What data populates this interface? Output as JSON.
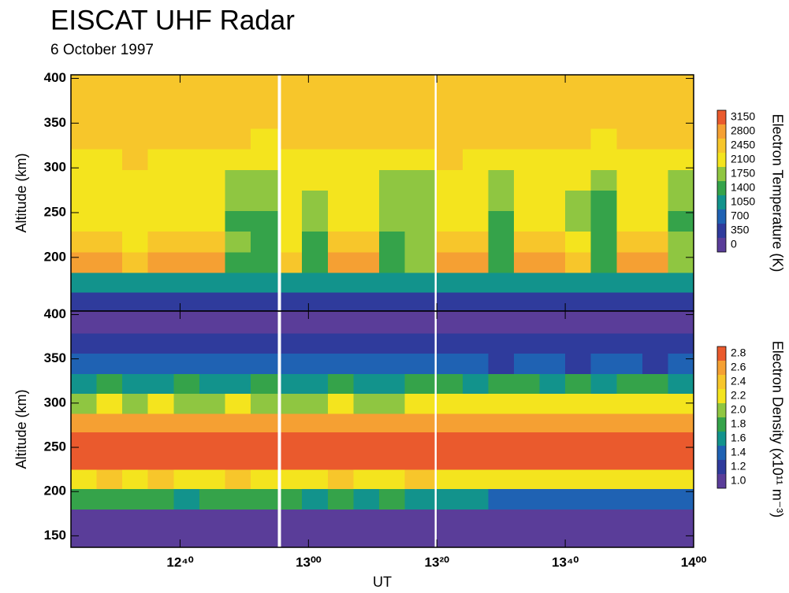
{
  "chart_data": [
    {
      "type": "heatmap",
      "title": "EISCAT UHF Radar",
      "subtitle": "6 October 1997",
      "ylabel": "Altitude (km)",
      "colorbar_label": "Electron Temperature (K)",
      "xlim": [
        743,
        840
      ],
      "ylim": [
        140,
        404
      ],
      "yticks": [
        200,
        250,
        300,
        350,
        400
      ],
      "x_edges": [
        743,
        747,
        751,
        755,
        759,
        763,
        767,
        771,
        775.2,
        775.7,
        779,
        783,
        787,
        791,
        795,
        799.6,
        800,
        804,
        808,
        812,
        816,
        820,
        824,
        828,
        832,
        836,
        840
      ],
      "y_edges": [
        140,
        161,
        183,
        206,
        229,
        252,
        275,
        298,
        321,
        344,
        367,
        390,
        404
      ],
      "levels": [
        0,
        350,
        700,
        1050,
        1400,
        1750,
        2100,
        2450,
        2800,
        3150
      ],
      "colors": [
        "#5a3d99",
        "#2f3b9c",
        "#1f62b3",
        "#12938c",
        "#35a34a",
        "#8fc641",
        "#f4e41e",
        "#f7c62b",
        "#f5a033",
        "#ea5a2d"
      ],
      "z": [
        [
          380,
          420,
          360,
          400,
          430,
          390,
          410,
          370,
          null,
          400,
          350,
          420,
          390,
          410,
          380,
          null,
          420,
          390,
          360,
          400,
          430,
          410,
          380,
          400,
          420,
          390
        ],
        [
          1120,
          1080,
          1150,
          1100,
          1060,
          1130,
          1090,
          1110,
          null,
          1140,
          1070,
          1120,
          1100,
          1080,
          1150,
          null,
          1130,
          1090,
          1110,
          1060,
          1120,
          1100,
          1140,
          1080,
          1110,
          1090
        ],
        [
          2900,
          2850,
          2500,
          2950,
          2880,
          2820,
          1700,
          1550,
          null,
          2450,
          1600,
          2880,
          2920,
          1650,
          1800,
          null,
          2950,
          2870,
          1650,
          2900,
          2860,
          2500,
          1550,
          2980,
          3000,
          1750
        ],
        [
          2600,
          2550,
          2300,
          2650,
          2580,
          2500,
          1750,
          1650,
          null,
          2250,
          1700,
          2600,
          2620,
          1700,
          1850,
          null,
          2650,
          2580,
          1700,
          2600,
          2550,
          2300,
          1650,
          2700,
          2720,
          1800
        ],
        [
          2200,
          2150,
          2250,
          2180,
          2120,
          2200,
          1600,
          1550,
          null,
          2150,
          1750,
          2200,
          2180,
          1800,
          1850,
          null,
          2200,
          2150,
          1600,
          2180,
          2120,
          1900,
          1450,
          2100,
          2150,
          1700
        ],
        [
          2150,
          2200,
          2180,
          2250,
          2150,
          2100,
          1800,
          1750,
          null,
          2200,
          1900,
          2150,
          2200,
          1850,
          1900,
          null,
          2180,
          2150,
          1750,
          2200,
          2150,
          1950,
          1700,
          2150,
          2200,
          1850
        ],
        [
          2250,
          2300,
          2200,
          2280,
          2250,
          2200,
          1950,
          1900,
          null,
          2250,
          2100,
          2300,
          2250,
          2000,
          2050,
          null,
          2300,
          2250,
          1950,
          2250,
          2300,
          2100,
          1900,
          2250,
          2300,
          2050
        ],
        [
          2400,
          2350,
          2450,
          2400,
          2380,
          2350,
          2300,
          2250,
          null,
          2400,
          2300,
          2420,
          2380,
          2300,
          2350,
          null,
          2450,
          2400,
          2300,
          2380,
          2400,
          2350,
          2250,
          2420,
          2400,
          2300
        ],
        [
          2500,
          2550,
          2480,
          2520,
          2500,
          2470,
          2450,
          2400,
          null,
          2500,
          2450,
          2520,
          2480,
          2450,
          2500,
          null,
          2550,
          2500,
          2450,
          2500,
          2520,
          2470,
          2400,
          2520,
          2500,
          2450
        ],
        [
          2480,
          2520,
          2550,
          2500,
          2470,
          2500,
          2450,
          2480,
          null,
          2520,
          2470,
          2500,
          2550,
          2480,
          2500,
          null,
          2520,
          2480,
          2500,
          2470,
          2550,
          2500,
          2450,
          2500,
          2480,
          2520
        ],
        [
          2600,
          2550,
          2500,
          2580,
          2520,
          2550,
          2500,
          2480,
          null,
          2550,
          2520,
          2500,
          2580,
          2550,
          2500,
          null,
          2580,
          2520,
          2550,
          2500,
          2600,
          2550,
          2480,
          2520,
          2550,
          2500
        ],
        [
          2700,
          2650,
          2600,
          2680,
          2620,
          2650,
          2600,
          2580,
          null,
          2650,
          2620,
          2600,
          2680,
          2650,
          2600,
          null,
          2680,
          2620,
          2650,
          2600,
          2700,
          2650,
          2580,
          2620,
          2650,
          2600
        ]
      ]
    },
    {
      "type": "heatmap",
      "xlabel": "UT",
      "ylabel": "Altitude (km)",
      "colorbar_label": "Electron Density (x10¹¹ m⁻³)",
      "xlim": [
        743,
        840
      ],
      "ylim": [
        137,
        404
      ],
      "yticks": [
        150,
        200,
        250,
        300,
        350,
        400
      ],
      "xticks": [
        {
          "value": 760,
          "label": "12⁴⁰"
        },
        {
          "value": 780,
          "label": "13⁰⁰"
        },
        {
          "value": 800,
          "label": "13²⁰"
        },
        {
          "value": 820,
          "label": "13⁴⁰"
        },
        {
          "value": 840,
          "label": "14⁰⁰"
        }
      ],
      "x_edges": [
        743,
        747,
        751,
        755,
        759,
        763,
        767,
        771,
        775.2,
        775.7,
        779,
        783,
        787,
        791,
        795,
        799.6,
        800,
        804,
        808,
        812,
        816,
        820,
        824,
        828,
        832,
        836,
        840
      ],
      "y_edges": [
        137,
        180,
        203,
        225,
        245,
        267,
        288,
        311,
        333,
        356,
        379,
        404
      ],
      "levels": [
        {
          "value": 1,
          "label": "1.0"
        },
        1.2,
        1.4,
        1.6,
        1.8,
        {
          "value": 2,
          "label": "2.0"
        },
        2.2,
        2.4,
        2.6,
        2.8
      ],
      "colors": [
        "#5a3d99",
        "#2f3b9c",
        "#1f62b3",
        "#12938c",
        "#35a34a",
        "#8fc641",
        "#f4e41e",
        "#f7c62b",
        "#f5a033",
        "#ea5a2d"
      ],
      "z": [
        [
          1.05,
          1.05,
          1.05,
          1.05,
          1.05,
          1.05,
          1.05,
          1.05,
          null,
          1.05,
          1.05,
          1.05,
          1.05,
          1.05,
          1.05,
          null,
          1.05,
          1.05,
          1.05,
          1.05,
          1.05,
          1.05,
          1.05,
          1.05,
          1.05,
          1.05
        ],
        [
          1.85,
          1.9,
          1.8,
          1.85,
          1.75,
          1.9,
          1.8,
          1.85,
          null,
          1.8,
          1.75,
          1.85,
          1.7,
          1.8,
          1.75,
          null,
          1.7,
          1.6,
          1.5,
          1.55,
          1.45,
          1.5,
          1.45,
          1.5,
          1.55,
          1.5
        ],
        [
          2.3,
          2.4,
          2.3,
          2.45,
          2.35,
          2.3,
          2.4,
          2.3,
          null,
          2.35,
          2.3,
          2.4,
          2.35,
          2.3,
          2.4,
          null,
          2.3,
          2.25,
          2.3,
          2.35,
          2.25,
          2.3,
          2.2,
          2.3,
          2.25,
          2.3
        ],
        [
          2.9,
          2.85,
          2.9,
          2.95,
          2.9,
          2.85,
          2.9,
          2.9,
          null,
          2.9,
          2.85,
          2.9,
          2.9,
          2.95,
          2.9,
          null,
          2.9,
          2.85,
          2.9,
          2.9,
          2.95,
          2.9,
          2.9,
          2.85,
          2.9,
          2.9
        ],
        [
          2.9,
          2.95,
          2.9,
          2.9,
          2.85,
          2.9,
          2.9,
          2.95,
          null,
          2.9,
          2.9,
          2.85,
          2.9,
          2.9,
          2.95,
          null,
          2.9,
          2.9,
          2.95,
          2.9,
          2.85,
          2.9,
          2.95,
          2.9,
          2.9,
          2.85
        ],
        [
          2.65,
          2.7,
          2.65,
          2.6,
          2.7,
          2.65,
          2.65,
          2.7,
          null,
          2.65,
          2.6,
          2.7,
          2.65,
          2.7,
          2.65,
          null,
          2.7,
          2.65,
          2.7,
          2.65,
          2.6,
          2.7,
          2.65,
          2.7,
          2.65,
          2.7
        ],
        [
          2.15,
          2.2,
          2.1,
          2.25,
          2.15,
          2.1,
          2.2,
          2.15,
          null,
          2.1,
          2.15,
          2.2,
          2.1,
          2.15,
          2.2,
          null,
          2.25,
          2.3,
          2.25,
          2.2,
          2.3,
          2.25,
          2.2,
          2.3,
          2.25,
          2.3
        ],
        [
          1.75,
          1.8,
          1.7,
          1.75,
          1.85,
          1.7,
          1.75,
          1.8,
          null,
          1.7,
          1.75,
          1.8,
          1.75,
          1.7,
          1.85,
          null,
          1.8,
          1.75,
          1.8,
          1.85,
          1.75,
          1.8,
          1.7,
          1.8,
          1.85,
          1.75
        ],
        [
          1.45,
          1.5,
          1.4,
          1.45,
          1.55,
          1.4,
          1.45,
          1.5,
          null,
          1.4,
          1.45,
          1.5,
          1.45,
          1.4,
          1.5,
          null,
          1.45,
          1.4,
          1.35,
          1.45,
          1.4,
          1.35,
          1.45,
          1.4,
          1.35,
          1.4
        ],
        [
          1.25,
          1.3,
          1.25,
          1.2,
          1.3,
          1.25,
          1.25,
          1.3,
          null,
          1.25,
          1.2,
          1.3,
          1.25,
          1.3,
          1.25,
          null,
          1.25,
          1.3,
          1.25,
          1.2,
          1.3,
          1.25,
          1.2,
          1.25,
          1.3,
          1.25
        ],
        [
          1.1,
          1.15,
          1.1,
          1.05,
          1.1,
          1.15,
          1.1,
          1.1,
          null,
          1.15,
          1.1,
          1.05,
          1.1,
          1.15,
          1.1,
          null,
          1.1,
          1.15,
          1.1,
          1.1,
          1.05,
          1.1,
          1.15,
          1.1,
          1.1,
          1.05
        ]
      ]
    }
  ]
}
